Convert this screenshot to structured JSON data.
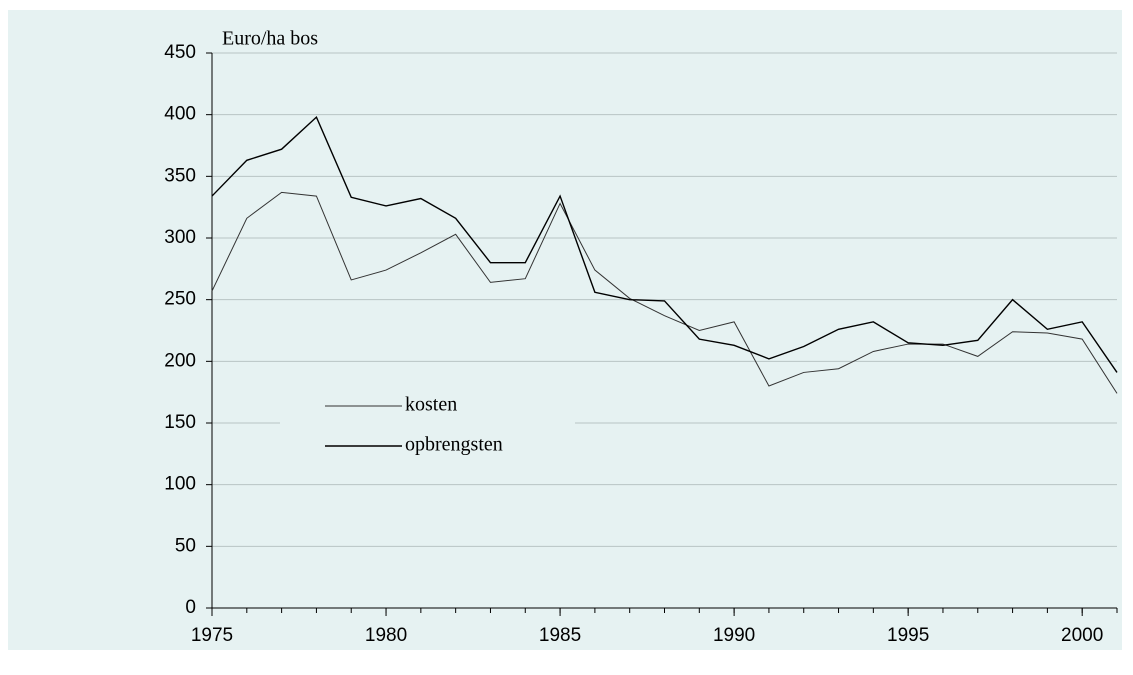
{
  "chart_data": {
    "type": "line",
    "ylabel": "Euro/ha bos",
    "x": [
      1975,
      1976,
      1977,
      1978,
      1979,
      1980,
      1981,
      1982,
      1983,
      1984,
      1985,
      1986,
      1987,
      1988,
      1989,
      1990,
      1991,
      1992,
      1993,
      1994,
      1995,
      1996,
      1997,
      1998,
      1999,
      2000,
      2001
    ],
    "series": [
      {
        "name": "kosten",
        "color": "#333333",
        "values": [
          257,
          316,
          337,
          334,
          266,
          274,
          288,
          303,
          264,
          267,
          328,
          274,
          251,
          237,
          225,
          232,
          180,
          191,
          194,
          208,
          214,
          214,
          204,
          224,
          223,
          218,
          174
        ]
      },
      {
        "name": "opbrengsten",
        "color": "#000000",
        "values": [
          334,
          363,
          372,
          398,
          333,
          326,
          332,
          316,
          280,
          280,
          334,
          256,
          250,
          249,
          218,
          213,
          202,
          212,
          226,
          232,
          215,
          213,
          217,
          250,
          226,
          232,
          191
        ]
      }
    ],
    "xlim": [
      1975,
      2001
    ],
    "xticks": [
      1975,
      1980,
      1985,
      1990,
      1995,
      2000
    ],
    "ylim": [
      0,
      450
    ],
    "yticks": [
      0,
      50,
      100,
      150,
      200,
      250,
      300,
      350,
      400,
      450
    ],
    "grid": true
  }
}
